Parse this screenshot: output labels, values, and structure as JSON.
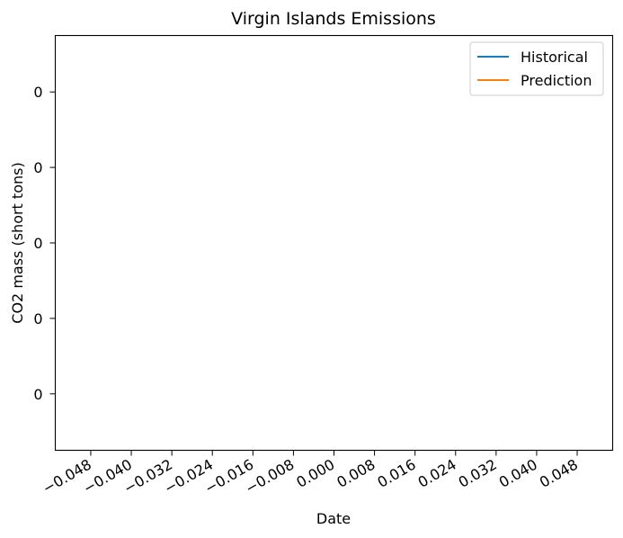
{
  "chart_data": {
    "type": "line",
    "title": "Virgin Islands Emissions",
    "xlabel": "Date",
    "ylabel": "CO2 mass (short tons)",
    "x_ticks": [
      "−0.048",
      "−0.040",
      "−0.032",
      "−0.024",
      "−0.016",
      "−0.008",
      "0.000",
      "0.008",
      "0.016",
      "0.024",
      "0.032",
      "0.040",
      "0.048"
    ],
    "x_tick_values": [
      -0.048,
      -0.04,
      -0.032,
      -0.024,
      -0.016,
      -0.008,
      0.0,
      0.008,
      0.016,
      0.024,
      0.032,
      0.04,
      0.048
    ],
    "y_ticks": [
      "0",
      "0",
      "0",
      "0",
      "0"
    ],
    "xlim": [
      -0.055,
      0.055
    ],
    "grid": false,
    "legend_position": "top-right",
    "series": [
      {
        "name": "Historical",
        "color": "#1f77b4",
        "x": [],
        "y": []
      },
      {
        "name": "Prediction",
        "color": "#ff7f0e",
        "x": [],
        "y": []
      }
    ]
  }
}
